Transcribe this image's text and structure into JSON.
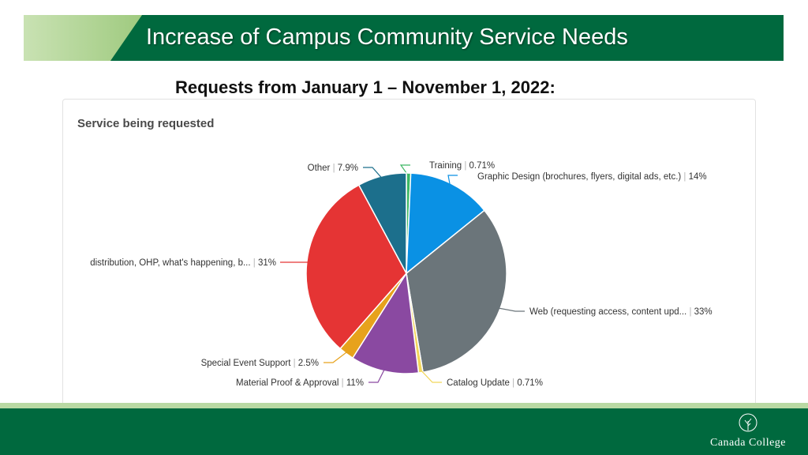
{
  "slide": {
    "title": "Increase of Campus Community Service Needs",
    "subtitle": "Requests from January 1 – November 1, 2022:",
    "logo_text": "Canada College",
    "colors": {
      "primary_green": "#00693e",
      "light_green": "#a9cf8c"
    }
  },
  "chart_data": {
    "type": "pie",
    "title": "Service being requested",
    "slices": [
      {
        "label": "Training",
        "value_label": "0.71%",
        "value": 0.71,
        "color": "#3db864"
      },
      {
        "label": "Graphic Design (brochures, flyers, digital ads, etc.)",
        "value_label": "14%",
        "value": 13.57,
        "color": "#0a91e4"
      },
      {
        "label": "Web (requesting access, content upd...",
        "value_label": "33%",
        "value": 33.3,
        "color": "#6b757a"
      },
      {
        "label": "Catalog Update",
        "value_label": "0.71%",
        "value": 0.71,
        "color": "#f2d65a"
      },
      {
        "label": "Material Proof & Approval",
        "value_label": "11%",
        "value": 11,
        "color": "#8a49a1"
      },
      {
        "label": "Special Event Support",
        "value_label": "2.5%",
        "value": 2.5,
        "color": "#e7a21c"
      },
      {
        "label": "distribution, OHP, what's happening, b...",
        "value_label": "31%",
        "value": 30.8,
        "color": "#e53434"
      },
      {
        "label": "Other",
        "value_label": "7.9%",
        "value": 7.9,
        "color": "#1c6f8c"
      }
    ]
  }
}
